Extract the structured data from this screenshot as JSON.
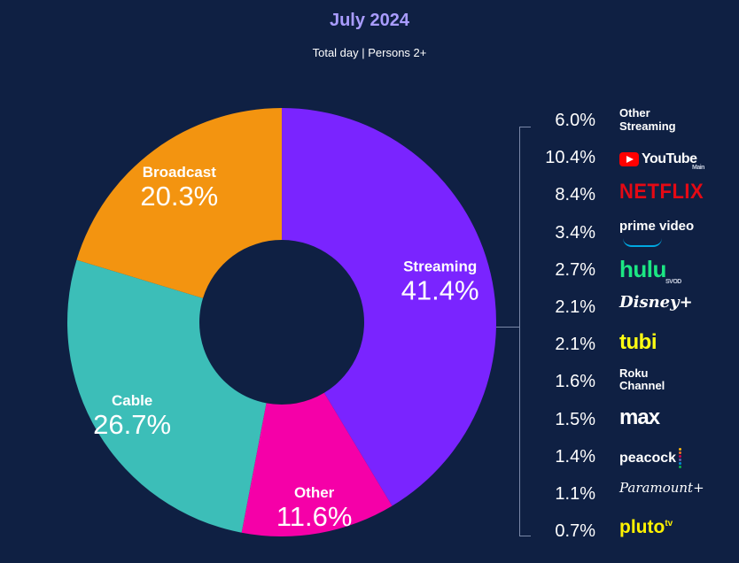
{
  "header": {
    "title": "July 2024",
    "subtitle": "Total day | Persons 2+"
  },
  "chart_data": {
    "type": "pie",
    "title": "July 2024",
    "subtitle": "Total day | Persons 2+",
    "donut": true,
    "unit": "%",
    "slices": [
      {
        "name": "Streaming",
        "value": 41.4,
        "label": "41.4%",
        "color": "#7a24ff"
      },
      {
        "name": "Other",
        "value": 11.6,
        "label": "11.6%",
        "color": "#f500a8"
      },
      {
        "name": "Cable",
        "value": 26.7,
        "label": "26.7%",
        "color": "#3cbeb8"
      },
      {
        "name": "Broadcast",
        "value": 20.3,
        "label": "20.3%",
        "color": "#f39410"
      }
    ],
    "streaming_breakdown": [
      {
        "name": "Other Streaming",
        "value": 6.0,
        "label": "6.0%"
      },
      {
        "name": "YouTube Main",
        "value": 10.4,
        "label": "10.4%"
      },
      {
        "name": "Netflix",
        "value": 8.4,
        "label": "8.4%"
      },
      {
        "name": "Prime Video",
        "value": 3.4,
        "label": "3.4%"
      },
      {
        "name": "Hulu SVOD",
        "value": 2.7,
        "label": "2.7%"
      },
      {
        "name": "Disney+",
        "value": 2.1,
        "label": "2.1%"
      },
      {
        "name": "Tubi",
        "value": 2.1,
        "label": "2.1%"
      },
      {
        "name": "Roku Channel",
        "value": 1.6,
        "label": "1.6%"
      },
      {
        "name": "Max",
        "value": 1.5,
        "label": "1.5%"
      },
      {
        "name": "Peacock",
        "value": 1.4,
        "label": "1.4%"
      },
      {
        "name": "Paramount+",
        "value": 1.1,
        "label": "1.1%"
      },
      {
        "name": "Pluto TV",
        "value": 0.7,
        "label": "0.7%"
      }
    ]
  },
  "logos": {
    "other_streaming": [
      "Other",
      "Streaming"
    ],
    "youtube": {
      "word": "YouTube",
      "sub": "Main"
    },
    "netflix": "NETFLIX",
    "prime": "prime video",
    "hulu": {
      "word": "hulu",
      "sub": "SVOD"
    },
    "disney": "Disney+",
    "tubi": "tubi",
    "roku": [
      "Roku",
      "Channel"
    ],
    "max": "max",
    "peacock": "peacock",
    "paramount": "Paramount+",
    "pluto": {
      "word": "pluto",
      "sup": "tv"
    }
  },
  "icons": {
    "youtube": "youtube-play-icon",
    "peacock": "peacock-dots-icon",
    "prime": "amazon-smile-icon"
  }
}
